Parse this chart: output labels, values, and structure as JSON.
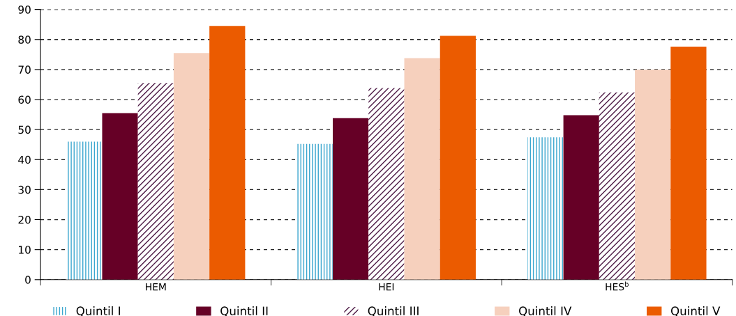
{
  "chart_data": {
    "type": "bar",
    "categories": [
      "HEM",
      "HEI",
      "HES$^{b}$"
    ],
    "series": [
      {
        "name": "Quintil I",
        "color": "#3aa6cf",
        "values": [
          46,
          45.2,
          47.4
        ]
      },
      {
        "name": "Quintil II",
        "color": "#660026",
        "values": [
          55.5,
          53.8,
          54.8
        ]
      },
      {
        "name": "Quintil III",
        "color": "#4d1a45",
        "values": [
          65.5,
          63.8,
          62.4
        ]
      },
      {
        "name": "Quintil IV",
        "color": "#f6d0bd",
        "values": [
          75.5,
          73.8,
          70
        ]
      },
      {
        "name": "Quintil V",
        "color": "#eb5b00",
        "values": [
          84.5,
          81.2,
          77.6
        ]
      }
    ],
    "ylim": [
      0,
      90
    ],
    "yticks": [
      0,
      10,
      20,
      30,
      40,
      50,
      60,
      70,
      80,
      90
    ],
    "grid": "y",
    "legend": "bottom"
  }
}
